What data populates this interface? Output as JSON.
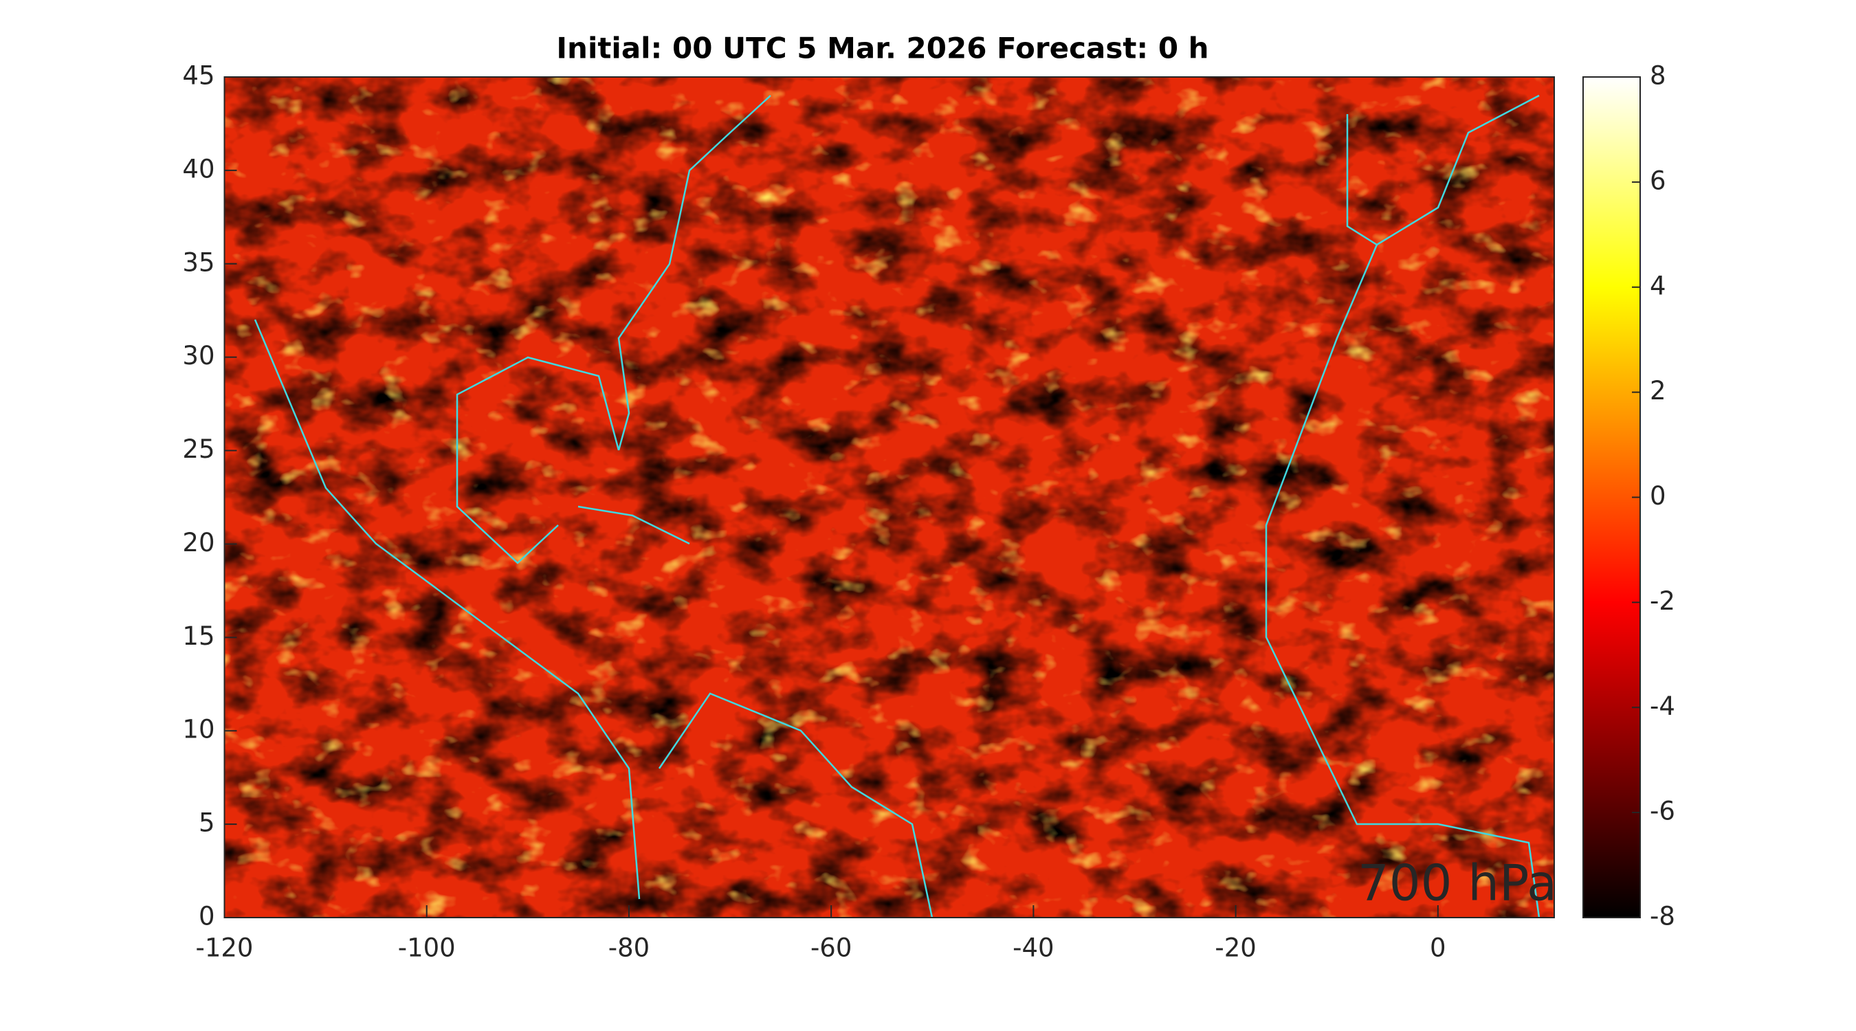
{
  "chart_data": {
    "type": "heatmap",
    "title": "Initial: 00 UTC 5 Mar. 2026 Forecast: 0 h",
    "annotation": {
      "text": "700 hPa",
      "color": "#19e619"
    },
    "xlim": [
      -120,
      11.5
    ],
    "ylim": [
      0,
      45
    ],
    "xticks": [
      -120,
      -100,
      -80,
      -60,
      -40,
      -20,
      0
    ],
    "yticks": [
      0,
      5,
      10,
      15,
      20,
      25,
      30,
      35,
      40,
      45
    ],
    "colormap": "hot",
    "coastline_color": "#40d8e0",
    "clim": [
      -8,
      8
    ],
    "cticks": [
      -8,
      -6,
      -4,
      -2,
      0,
      2,
      4,
      6,
      8
    ]
  }
}
